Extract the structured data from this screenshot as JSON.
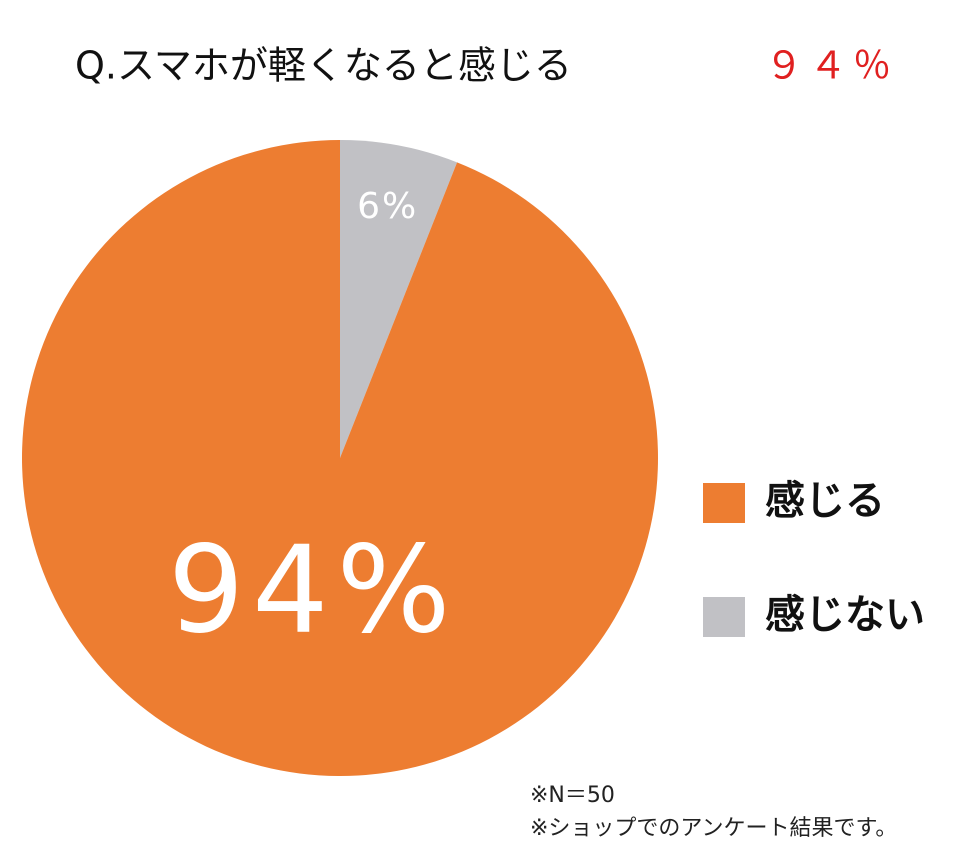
{
  "chart_data": {
    "type": "pie",
    "title": "Q.スマホが軽くなると感じる",
    "title_highlight": "９４％",
    "categories": [
      "感じる",
      "感じない"
    ],
    "values": [
      94,
      6
    ],
    "value_labels": [
      "94%",
      "6%"
    ],
    "colors": [
      "#ed7d31",
      "#c1c1c5"
    ],
    "notes": [
      "※N＝50",
      "※ショップでのアンケート結果です。"
    ]
  }
}
